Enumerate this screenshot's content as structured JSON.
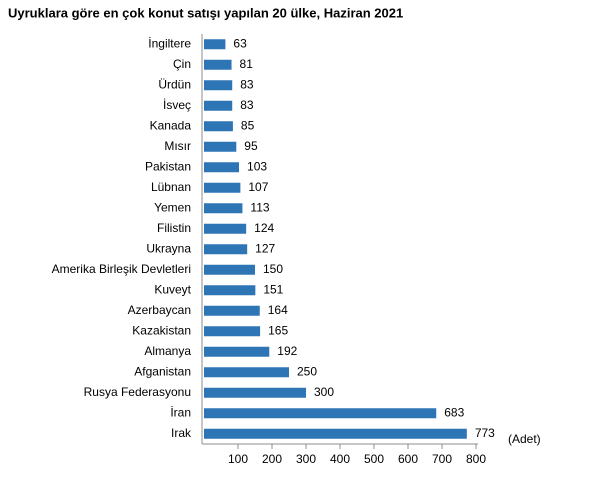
{
  "chart_data": {
    "type": "hbar",
    "title": "Uyruklara göre en çok konut satışı yapılan 20 ülke, Haziran 2021",
    "categories": [
      "İngiltere",
      "Çin",
      "Ürdün",
      "İsveç",
      "Kanada",
      "Mısır",
      "Pakistan",
      "Lübnan",
      "Yemen",
      "Filistin",
      "Ukrayna",
      "Amerika Birleşik Devletleri",
      "Kuveyt",
      "Azerbaycan",
      "Kazakistan",
      "Almanya",
      "Afganistan",
      "Rusya Federasyonu",
      "İran",
      "Irak"
    ],
    "values": [
      63,
      81,
      83,
      83,
      85,
      95,
      103,
      107,
      113,
      124,
      127,
      150,
      151,
      164,
      165,
      192,
      250,
      300,
      683,
      773
    ],
    "color": "#2e75b6",
    "x_label": "(Adet)",
    "xlim": [
      0,
      800
    ],
    "xticks": [
      100,
      200,
      300,
      400,
      500,
      600,
      700,
      800
    ]
  }
}
